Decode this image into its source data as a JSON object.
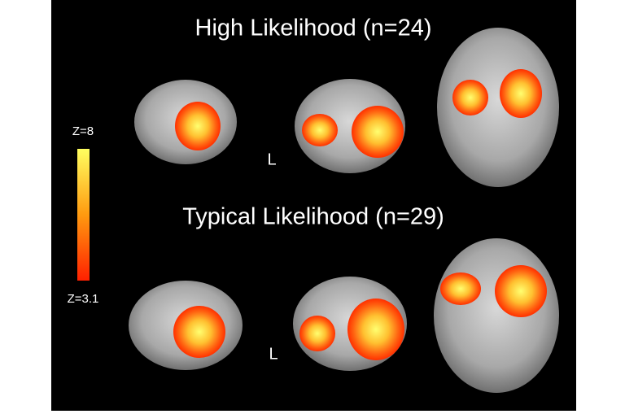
{
  "panels": [
    {
      "title": "High Likelihood (n=24)",
      "side_label": "L"
    },
    {
      "title": "Typical Likelihood (n=29)",
      "side_label": "L"
    }
  ],
  "colorbar": {
    "max_label": "Z=8",
    "min_label": "Z=3.1"
  }
}
